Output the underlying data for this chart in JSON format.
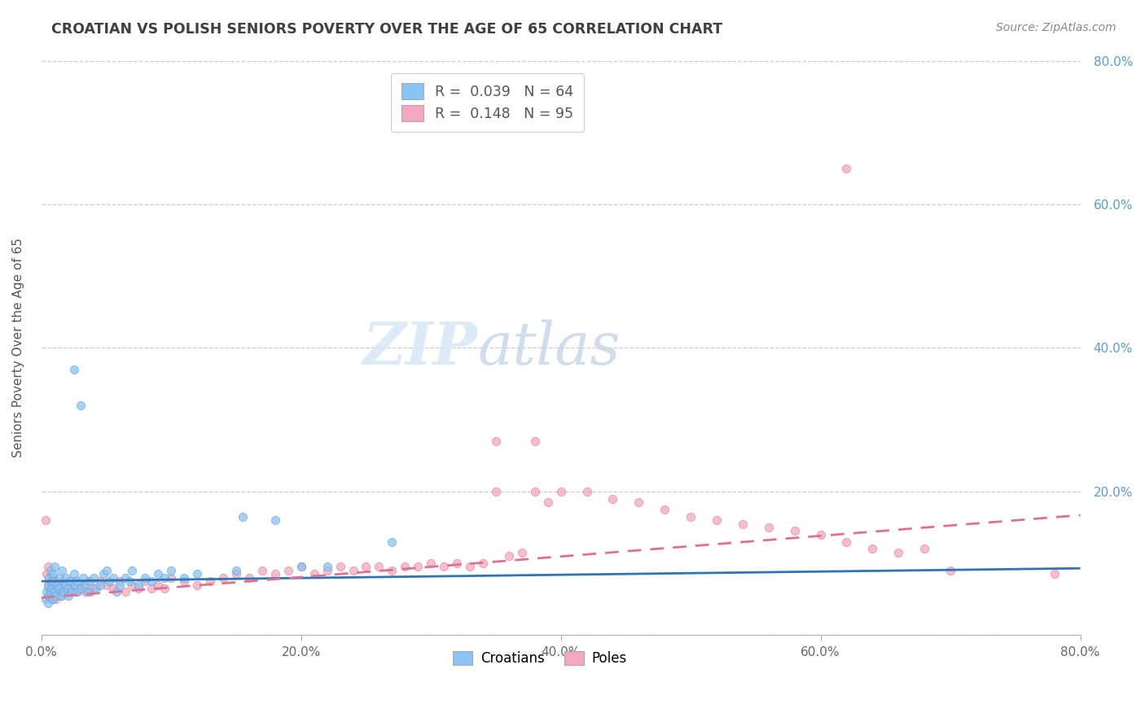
{
  "title": "CROATIAN VS POLISH SENIORS POVERTY OVER THE AGE OF 65 CORRELATION CHART",
  "source": "Source: ZipAtlas.com",
  "ylabel": "Seniors Poverty Over the Age of 65",
  "xlim": [
    0.0,
    0.8
  ],
  "ylim": [
    0.0,
    0.8
  ],
  "xticks": [
    0.0,
    0.2,
    0.4,
    0.6,
    0.8
  ],
  "yticks": [
    0.0,
    0.2,
    0.4,
    0.6,
    0.8
  ],
  "xticklabels": [
    "0.0%",
    "20.0%",
    "40.0%",
    "60.0%",
    "80.0%"
  ],
  "right_yticklabels": [
    "",
    "20.0%",
    "40.0%",
    "60.0%",
    "80.0%"
  ],
  "croatians_color": "#89c4f4",
  "croatians_edge_color": "#5b9bd5",
  "poles_color": "#f4a7c0",
  "poles_edge_color": "#e07090",
  "croatians_line_color": "#2e75b6",
  "poles_line_color": "#e07090",
  "legend_croatians_R": "0.039",
  "legend_croatians_N": "64",
  "legend_poles_R": "0.148",
  "legend_poles_N": "95",
  "background_color": "#ffffff",
  "grid_color": "#cccccc",
  "watermark_zip": "ZIP",
  "watermark_atlas": "atlas",
  "title_color": "#404040",
  "source_color": "#888888",
  "right_tick_color": "#5b9bd5",
  "cr_trend_intercept": 0.075,
  "cr_trend_slope": 0.018,
  "po_trend_intercept": 0.052,
  "po_trend_slope": 0.115,
  "croatians_x": [
    0.003,
    0.004,
    0.005,
    0.005,
    0.006,
    0.006,
    0.007,
    0.007,
    0.008,
    0.008,
    0.009,
    0.009,
    0.01,
    0.01,
    0.011,
    0.012,
    0.013,
    0.014,
    0.015,
    0.016,
    0.017,
    0.018,
    0.019,
    0.02,
    0.021,
    0.022,
    0.023,
    0.025,
    0.026,
    0.027,
    0.028,
    0.03,
    0.032,
    0.034,
    0.036,
    0.038,
    0.04,
    0.042,
    0.045,
    0.048,
    0.05,
    0.052,
    0.055,
    0.058,
    0.06,
    0.065,
    0.068,
    0.07,
    0.075,
    0.08,
    0.085,
    0.09,
    0.095,
    0.1,
    0.11,
    0.12,
    0.15,
    0.155,
    0.2,
    0.22,
    0.025,
    0.03,
    0.18,
    0.27
  ],
  "croatians_y": [
    0.05,
    0.06,
    0.045,
    0.07,
    0.055,
    0.08,
    0.06,
    0.09,
    0.065,
    0.075,
    0.05,
    0.085,
    0.06,
    0.095,
    0.055,
    0.07,
    0.065,
    0.08,
    0.055,
    0.09,
    0.06,
    0.07,
    0.08,
    0.065,
    0.055,
    0.075,
    0.06,
    0.085,
    0.07,
    0.06,
    0.075,
    0.065,
    0.08,
    0.07,
    0.06,
    0.075,
    0.08,
    0.065,
    0.07,
    0.085,
    0.09,
    0.075,
    0.08,
    0.06,
    0.07,
    0.08,
    0.075,
    0.09,
    0.07,
    0.08,
    0.075,
    0.085,
    0.08,
    0.09,
    0.08,
    0.085,
    0.09,
    0.165,
    0.095,
    0.095,
    0.37,
    0.32,
    0.16,
    0.13
  ],
  "poles_x": [
    0.003,
    0.004,
    0.005,
    0.005,
    0.006,
    0.006,
    0.007,
    0.007,
    0.008,
    0.008,
    0.009,
    0.009,
    0.01,
    0.01,
    0.011,
    0.012,
    0.013,
    0.014,
    0.015,
    0.016,
    0.017,
    0.018,
    0.019,
    0.02,
    0.022,
    0.024,
    0.026,
    0.028,
    0.03,
    0.032,
    0.034,
    0.036,
    0.038,
    0.04,
    0.045,
    0.05,
    0.055,
    0.06,
    0.065,
    0.07,
    0.075,
    0.08,
    0.085,
    0.09,
    0.095,
    0.1,
    0.11,
    0.12,
    0.13,
    0.14,
    0.15,
    0.16,
    0.17,
    0.18,
    0.19,
    0.2,
    0.21,
    0.22,
    0.23,
    0.24,
    0.25,
    0.26,
    0.27,
    0.28,
    0.29,
    0.3,
    0.31,
    0.32,
    0.33,
    0.34,
    0.35,
    0.36,
    0.37,
    0.38,
    0.39,
    0.4,
    0.42,
    0.44,
    0.46,
    0.48,
    0.5,
    0.52,
    0.54,
    0.56,
    0.58,
    0.6,
    0.62,
    0.64,
    0.66,
    0.7,
    0.35,
    0.38,
    0.62,
    0.68,
    0.78
  ],
  "poles_y": [
    0.16,
    0.085,
    0.07,
    0.095,
    0.065,
    0.08,
    0.06,
    0.075,
    0.05,
    0.07,
    0.055,
    0.08,
    0.06,
    0.075,
    0.05,
    0.065,
    0.06,
    0.07,
    0.055,
    0.075,
    0.06,
    0.065,
    0.07,
    0.06,
    0.07,
    0.06,
    0.075,
    0.06,
    0.065,
    0.07,
    0.06,
    0.075,
    0.06,
    0.065,
    0.075,
    0.07,
    0.065,
    0.075,
    0.06,
    0.07,
    0.065,
    0.075,
    0.065,
    0.07,
    0.065,
    0.08,
    0.075,
    0.07,
    0.075,
    0.08,
    0.085,
    0.08,
    0.09,
    0.085,
    0.09,
    0.095,
    0.085,
    0.09,
    0.095,
    0.09,
    0.095,
    0.095,
    0.09,
    0.095,
    0.095,
    0.1,
    0.095,
    0.1,
    0.095,
    0.1,
    0.2,
    0.11,
    0.115,
    0.2,
    0.185,
    0.2,
    0.2,
    0.19,
    0.185,
    0.175,
    0.165,
    0.16,
    0.155,
    0.15,
    0.145,
    0.14,
    0.13,
    0.12,
    0.115,
    0.09,
    0.27,
    0.27,
    0.65,
    0.12,
    0.085
  ]
}
